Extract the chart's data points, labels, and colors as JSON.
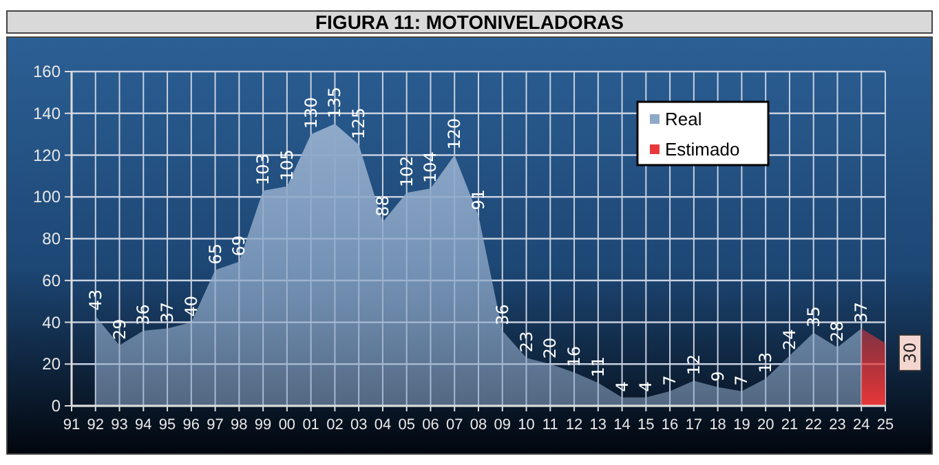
{
  "chart_data": {
    "type": "area",
    "title": "FIGURA 11: MOTONIVELADORAS",
    "categories": [
      "91",
      "92",
      "93",
      "94",
      "95",
      "96",
      "97",
      "98",
      "99",
      "00",
      "01",
      "02",
      "03",
      "04",
      "05",
      "06",
      "07",
      "08",
      "09",
      "10",
      "11",
      "12",
      "13",
      "14",
      "15",
      "16",
      "17",
      "18",
      "19",
      "20",
      "21",
      "22",
      "23",
      "24",
      "25"
    ],
    "series": [
      {
        "name": "Real",
        "color": "#8fa9c9",
        "values": [
          null,
          43,
          29,
          36,
          37,
          40,
          65,
          69,
          103,
          105,
          130,
          135,
          125,
          88,
          102,
          104,
          120,
          91,
          36,
          23,
          20,
          16,
          11,
          4,
          4,
          7,
          12,
          9,
          7,
          13,
          24,
          35,
          28,
          37,
          null
        ],
        "value_labels": [
          null,
          "43",
          "29",
          "36",
          "37",
          "40",
          "65",
          "69",
          "103",
          "105",
          "130",
          "135",
          "125",
          "88",
          "102",
          "104",
          "120",
          "91",
          "36",
          "23",
          "20",
          "16",
          "11",
          "4",
          "4",
          "7",
          "12",
          "9",
          "7",
          "13",
          "24",
          "35",
          "28",
          "37",
          null
        ]
      },
      {
        "name": "Estimado",
        "color": "#e8383a",
        "values": [
          null,
          null,
          null,
          null,
          null,
          null,
          null,
          null,
          null,
          null,
          null,
          null,
          null,
          null,
          null,
          null,
          null,
          null,
          null,
          null,
          null,
          null,
          null,
          null,
          null,
          null,
          null,
          null,
          null,
          null,
          null,
          null,
          null,
          37,
          30
        ],
        "value_labels": [
          null,
          null,
          null,
          null,
          null,
          null,
          null,
          null,
          null,
          null,
          null,
          null,
          null,
          null,
          null,
          null,
          null,
          null,
          null,
          null,
          null,
          null,
          null,
          null,
          null,
          null,
          null,
          null,
          null,
          null,
          null,
          null,
          null,
          null,
          "30"
        ]
      }
    ],
    "ylim": [
      0,
      160
    ],
    "yticks": [
      0,
      20,
      40,
      60,
      80,
      100,
      120,
      140,
      160
    ],
    "grid": true,
    "legend": "top right"
  }
}
